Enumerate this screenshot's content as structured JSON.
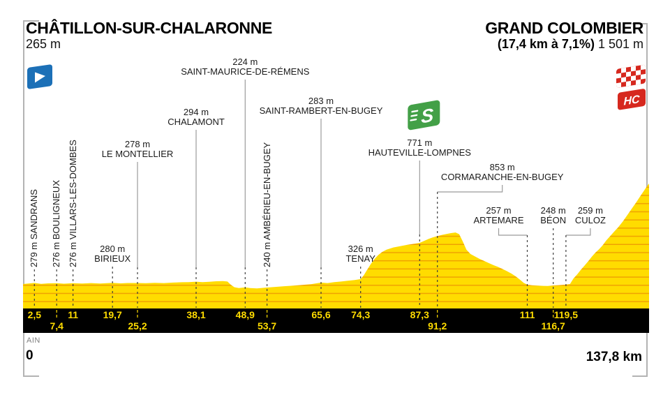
{
  "header": {
    "start": {
      "name": "CHÂTILLON-SUR-CHALARONNE",
      "elevation": "265 m"
    },
    "finish": {
      "name": "GRAND COLOMBIER",
      "climb_stats": "(17,4 km à 7,1%)",
      "elevation": "1 501 m",
      "category": "HC"
    }
  },
  "footer": {
    "department": "AIN",
    "start_km": "0",
    "finish_km": "137,8 km"
  },
  "icons": {
    "sprint_label": "S",
    "hc_label": "HC",
    "start_flag": "start-flag",
    "finish_flag": "checkered-flag"
  },
  "colors": {
    "yellow": "#FFDC00",
    "stripe": "#F0A202",
    "bar": "#000000",
    "blue": "#1C70B7",
    "green": "#43A047",
    "red": "#D6281E",
    "solid_line": "#9B9B9B",
    "dash_line": "#3C3C3C",
    "bracket": "#B3B3B3",
    "text": "#1A1A1A"
  },
  "chart_data": {
    "type": "area",
    "x_unit": "km",
    "y_unit": "m",
    "x_range": [
      0,
      137.8
    ],
    "start": {
      "name": "CHÂTILLON-SUR-CHALARONNE",
      "km": 0,
      "elevation_m": 265
    },
    "finish": {
      "name": "GRAND COLOMBIER",
      "km": 137.8,
      "elevation_m": 1501,
      "category": "HC",
      "climb_length_km": 17.4,
      "climb_gradient_pct": 7.1
    },
    "sprint": {
      "name": "HAUTEVILLE-LOMPNES",
      "km": 87.3
    },
    "waypoints": [
      {
        "name": "SANDRANS",
        "elevation_label": "279 m",
        "elevation_m": 279,
        "km": 2.5,
        "km_label": "2,5",
        "bar_row": "top",
        "orientation": "vertical",
        "connector": "dashed"
      },
      {
        "name": "BOULIGNEUX",
        "elevation_label": "276 m",
        "elevation_m": 276,
        "km": 7.4,
        "km_label": "7,4",
        "bar_row": "bottom",
        "orientation": "vertical",
        "connector": "dashed"
      },
      {
        "name": "VILLARS-LES-DOMBES",
        "elevation_label": "276 m",
        "elevation_m": 276,
        "km": 11,
        "km_label": "11",
        "bar_row": "top",
        "orientation": "vertical",
        "connector": "dashed"
      },
      {
        "name": "BIRIEUX",
        "elevation_label": "280 m",
        "elevation_m": 280,
        "km": 19.7,
        "km_label": "19,7",
        "bar_row": "top",
        "orientation": "horizontal",
        "connector": "dashed",
        "label_bottom_y": 378
      },
      {
        "name": "LE MONTELLIER",
        "elevation_label": "278 m",
        "elevation_m": 278,
        "km": 25.2,
        "km_label": "25,2",
        "bar_row": "bottom",
        "orientation": "horizontal",
        "connector": "solid",
        "label_bottom_y": 228
      },
      {
        "name": "CHALAMONT",
        "elevation_label": "294 m",
        "elevation_m": 294,
        "km": 38.1,
        "km_label": "38,1",
        "bar_row": "top",
        "orientation": "horizontal",
        "connector": "solid",
        "label_bottom_y": 182
      },
      {
        "name": "SAINT-MAURICE-DE-RÉMENS",
        "elevation_label": "224 m",
        "elevation_m": 224,
        "km": 48.9,
        "km_label": "48,9",
        "bar_row": "top",
        "orientation": "horizontal",
        "connector": "solid",
        "label_bottom_y": 110
      },
      {
        "name": "AMBÉRIEU-EN-BUGEY",
        "elevation_label": "240 m",
        "elevation_m": 240,
        "km": 53.7,
        "km_label": "53,7",
        "bar_row": "bottom",
        "orientation": "vertical",
        "connector": "dashed"
      },
      {
        "name": "SAINT-RAMBERT-EN-BUGEY",
        "elevation_label": "283 m",
        "elevation_m": 283,
        "km": 65.6,
        "km_label": "65,6",
        "bar_row": "top",
        "orientation": "horizontal",
        "connector": "solid",
        "label_bottom_y": 166
      },
      {
        "name": "TENAY",
        "elevation_label": "326 m",
        "elevation_m": 326,
        "km": 74.3,
        "km_label": "74,3",
        "bar_row": "top",
        "orientation": "horizontal",
        "connector": "dashed",
        "label_bottom_y": 378
      },
      {
        "name": "HAUTEVILLE-LOMPNES",
        "elevation_label": "771 m",
        "elevation_m": 771,
        "km": 87.3,
        "km_label": "87,3",
        "bar_row": "top",
        "orientation": "horizontal",
        "connector": "solid",
        "label_bottom_y": 226,
        "has_sprint_icon": true
      },
      {
        "name": "CORMARANCHE-EN-BUGEY",
        "elevation_label": "853 m",
        "elevation_m": 853,
        "km": 91.2,
        "km_label": "91,2",
        "bar_row": "bottom",
        "orientation": "horizontal",
        "connector": "elbow",
        "label_bottom_y": 261,
        "label_dx": 93
      },
      {
        "name": "ARTEMARE",
        "elevation_label": "257 m",
        "elevation_m": 257,
        "km": 111,
        "km_label": "111",
        "bar_row": "top",
        "orientation": "horizontal",
        "connector": "elbow",
        "label_bottom_y": 323,
        "label_dx": -41
      },
      {
        "name": "BÉON",
        "elevation_label": "248 m",
        "elevation_m": 248,
        "km": 116.7,
        "km_label": "116,7",
        "bar_row": "bottom",
        "orientation": "horizontal",
        "connector": "dashed",
        "label_bottom_y": 323
      },
      {
        "name": "CULOZ",
        "elevation_label": "259 m",
        "elevation_m": 259,
        "km": 119.5,
        "km_label": "119,5",
        "bar_row": "top",
        "orientation": "horizontal",
        "connector": "elbow",
        "label_bottom_y": 323,
        "label_dx": 35
      }
    ],
    "profile": [
      [
        0,
        265
      ],
      [
        2.5,
        279
      ],
      [
        4,
        268
      ],
      [
        5.5,
        274
      ],
      [
        7.4,
        276
      ],
      [
        9,
        269
      ],
      [
        11,
        276
      ],
      [
        13,
        272
      ],
      [
        15,
        277
      ],
      [
        17,
        272
      ],
      [
        19.7,
        280
      ],
      [
        21.5,
        274
      ],
      [
        23,
        278
      ],
      [
        25.2,
        278
      ],
      [
        27,
        275
      ],
      [
        29,
        280
      ],
      [
        31,
        277
      ],
      [
        33,
        283
      ],
      [
        35,
        287
      ],
      [
        36.5,
        289
      ],
      [
        38.1,
        294
      ],
      [
        39.5,
        288
      ],
      [
        41,
        293
      ],
      [
        42.5,
        299
      ],
      [
        44,
        302
      ],
      [
        45,
        296
      ],
      [
        45.7,
        258
      ],
      [
        46.5,
        226
      ],
      [
        47.5,
        215
      ],
      [
        48.9,
        224
      ],
      [
        50,
        216
      ],
      [
        51.5,
        212
      ],
      [
        53.7,
        222
      ],
      [
        55.5,
        230
      ],
      [
        57.5,
        238
      ],
      [
        59.5,
        246
      ],
      [
        61.5,
        254
      ],
      [
        63.5,
        264
      ],
      [
        65.6,
        283
      ],
      [
        67,
        277
      ],
      [
        68.5,
        289
      ],
      [
        70,
        296
      ],
      [
        71.5,
        305
      ],
      [
        73,
        315
      ],
      [
        74.3,
        326
      ],
      [
        75,
        372
      ],
      [
        75.8,
        445
      ],
      [
        76.6,
        515
      ],
      [
        77.4,
        575
      ],
      [
        78.2,
        622
      ],
      [
        79,
        658
      ],
      [
        80,
        688
      ],
      [
        81.5,
        714
      ],
      [
        83,
        731
      ],
      [
        84.5,
        746
      ],
      [
        86,
        759
      ],
      [
        87.3,
        771
      ],
      [
        88.3,
        796
      ],
      [
        89.3,
        821
      ],
      [
        90.2,
        839
      ],
      [
        91.2,
        853
      ],
      [
        92.2,
        869
      ],
      [
        93.2,
        881
      ],
      [
        94.2,
        891
      ],
      [
        95.2,
        899
      ],
      [
        96,
        878
      ],
      [
        96.8,
        788
      ],
      [
        97.6,
        688
      ],
      [
        98.5,
        634
      ],
      [
        99.5,
        604
      ],
      [
        100.5,
        574
      ],
      [
        101.5,
        549
      ],
      [
        102.5,
        523
      ],
      [
        103.5,
        499
      ],
      [
        104.5,
        477
      ],
      [
        105.5,
        451
      ],
      [
        106.5,
        424
      ],
      [
        107.5,
        394
      ],
      [
        108.5,
        358
      ],
      [
        109.5,
        313
      ],
      [
        110.2,
        280
      ],
      [
        111,
        257
      ],
      [
        112,
        250
      ],
      [
        113,
        247
      ],
      [
        114.5,
        243
      ],
      [
        115.5,
        242
      ],
      [
        116.7,
        248
      ],
      [
        117.8,
        251
      ],
      [
        118.6,
        254
      ],
      [
        119.5,
        259
      ],
      [
        120.4,
        265
      ],
      [
        121.2,
        335
      ],
      [
        122,
        385
      ],
      [
        122.8,
        442
      ],
      [
        123.6,
        492
      ],
      [
        124.4,
        545
      ],
      [
        125.2,
        602
      ],
      [
        126,
        652
      ],
      [
        126.8,
        693
      ],
      [
        127.6,
        742
      ],
      [
        128.4,
        802
      ],
      [
        129.2,
        852
      ],
      [
        130,
        902
      ],
      [
        131,
        962
      ],
      [
        132,
        1032
      ],
      [
        133,
        1112
      ],
      [
        134,
        1192
      ],
      [
        135,
        1272
      ],
      [
        136,
        1357
      ],
      [
        136.8,
        1422
      ],
      [
        137.4,
        1472
      ],
      [
        137.8,
        1501
      ]
    ]
  }
}
